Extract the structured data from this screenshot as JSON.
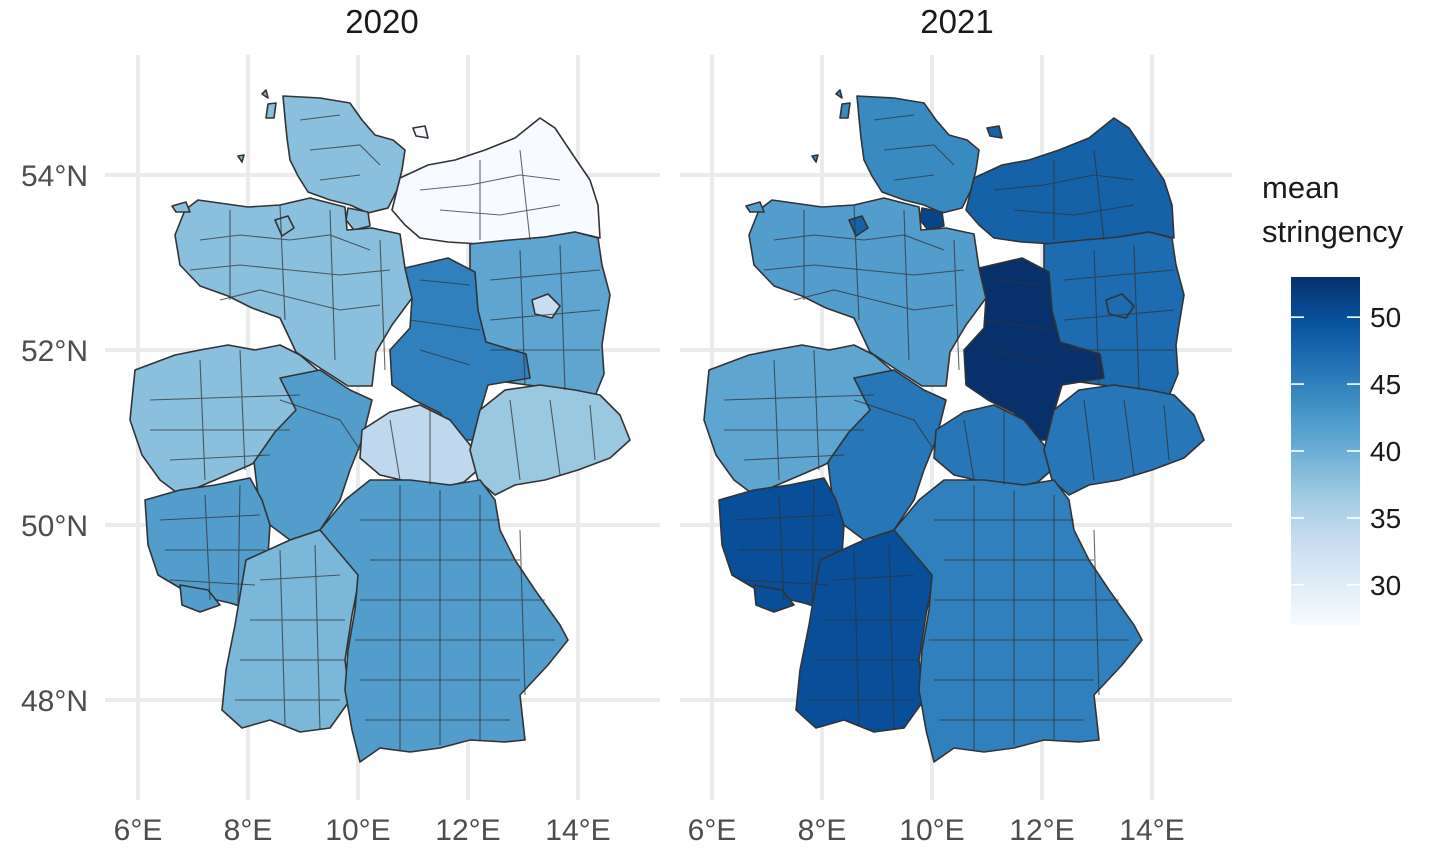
{
  "panels": [
    {
      "title": "2020",
      "regions": [
        {
          "name": "schleswig-holstein",
          "value": 38
        },
        {
          "name": "hamburg",
          "value": 38
        },
        {
          "name": "mecklenburg-vorpommern",
          "value": 27
        },
        {
          "name": "niedersachsen",
          "value": 38
        },
        {
          "name": "bremen",
          "value": 38
        },
        {
          "name": "brandenburg",
          "value": 41
        },
        {
          "name": "berlin",
          "value": 33
        },
        {
          "name": "sachsen-anhalt",
          "value": 45
        },
        {
          "name": "nordrhein-westfalen",
          "value": 38
        },
        {
          "name": "hessen",
          "value": 42
        },
        {
          "name": "thueringen",
          "value": 34
        },
        {
          "name": "sachsen",
          "value": 37
        },
        {
          "name": "rheinland-pfalz",
          "value": 42
        },
        {
          "name": "saarland",
          "value": 42
        },
        {
          "name": "baden-wuerttemberg",
          "value": 39
        },
        {
          "name": "bayern",
          "value": 42
        }
      ]
    },
    {
      "title": "2021",
      "regions": [
        {
          "name": "schleswig-holstein",
          "value": 44
        },
        {
          "name": "hamburg",
          "value": 51
        },
        {
          "name": "mecklenburg-vorpommern",
          "value": 48
        },
        {
          "name": "niedersachsen",
          "value": 42
        },
        {
          "name": "bremen",
          "value": 48
        },
        {
          "name": "brandenburg",
          "value": 47
        },
        {
          "name": "berlin",
          "value": 47
        },
        {
          "name": "sachsen-anhalt",
          "value": 53
        },
        {
          "name": "nordrhein-westfalen",
          "value": 41
        },
        {
          "name": "hessen",
          "value": 46
        },
        {
          "name": "thueringen",
          "value": 46
        },
        {
          "name": "sachsen",
          "value": 46
        },
        {
          "name": "rheinland-pfalz",
          "value": 50
        },
        {
          "name": "saarland",
          "value": 50
        },
        {
          "name": "baden-wuerttemberg",
          "value": 50
        },
        {
          "name": "bayern",
          "value": 45
        }
      ]
    }
  ],
  "x_axis": {
    "ticks": [
      "6°E",
      "8°E",
      "10°E",
      "12°E",
      "14°E"
    ]
  },
  "y_axis": {
    "ticks": [
      "54°N",
      "52°N",
      "50°N",
      "48°N"
    ]
  },
  "legend": {
    "title_line1": "mean",
    "title_line2": "stringency",
    "ticks": [
      "50",
      "45",
      "40",
      "35",
      "30"
    ],
    "range": [
      27,
      53
    ],
    "colors": [
      "#08306b",
      "#08519c",
      "#2171b5",
      "#4292c6",
      "#6baed6",
      "#9ecae1",
      "#c6dbef",
      "#deebf7",
      "#f7fbff"
    ]
  }
}
